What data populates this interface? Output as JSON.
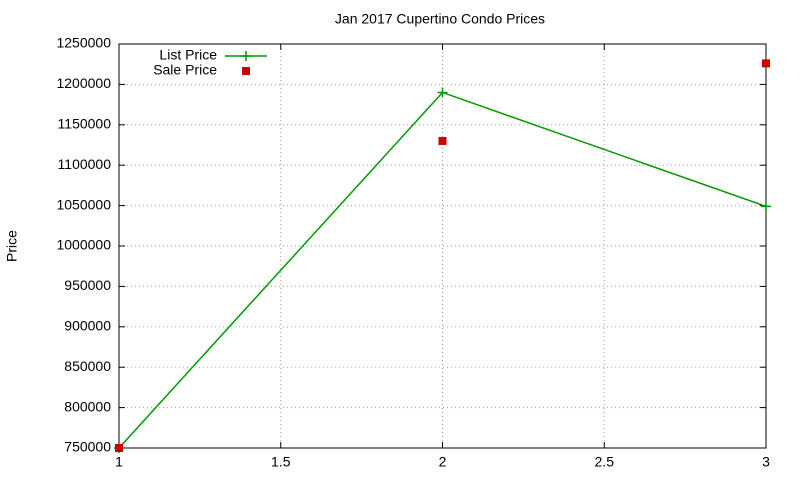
{
  "chart_data": {
    "type": "line",
    "title": "Jan 2017 Cupertino Condo Prices",
    "y_label": "Price",
    "x": [
      1,
      2,
      3
    ],
    "series": [
      {
        "name": "List Price",
        "color": "#009900",
        "marker": "plus",
        "line": true,
        "values": [
          750000,
          1190000,
          1049000
        ]
      },
      {
        "name": "Sale Price",
        "color": "#cc0000",
        "marker": "square",
        "line": false,
        "values": [
          750000,
          1130000,
          1226000
        ]
      }
    ],
    "xlim": [
      1,
      3
    ],
    "xticks": [
      1,
      1.5,
      2,
      2.5,
      3
    ],
    "ylim": [
      750000,
      1250000
    ],
    "yticks": [
      750000,
      800000,
      850000,
      900000,
      950000,
      1000000,
      1050000,
      1100000,
      1150000,
      1200000,
      1250000
    ],
    "grid": true,
    "legend": "top-left"
  }
}
